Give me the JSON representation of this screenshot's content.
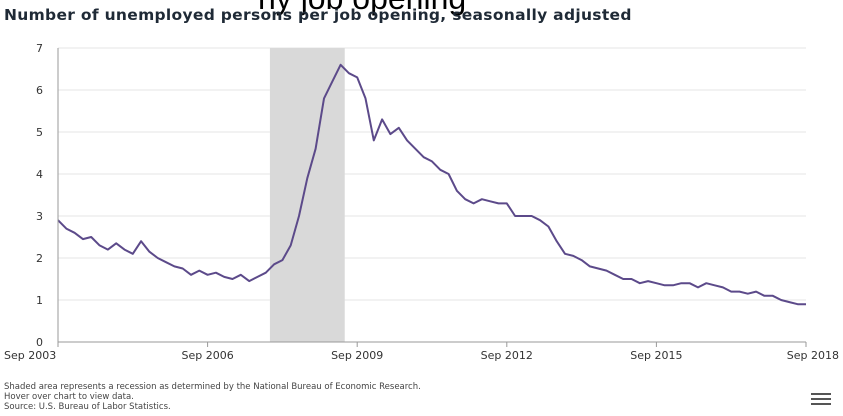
{
  "page": {
    "top_cut_text": "ny job opening",
    "title": "Number of unemployed persons per job opening, seasonally adjusted",
    "notes": [
      "Shaded area represents a recession as determined by the National Bureau of Economic Research.",
      "Hover over chart to view data.",
      "Source: U.S. Bureau of Labor Statistics."
    ],
    "menu_icon": "hamburger-menu-icon"
  },
  "colors": {
    "line": "#5c4a8a",
    "recession": "#d9d9d9",
    "grid": "#e6e6e6",
    "axis": "#999999"
  },
  "chart_data": {
    "type": "line",
    "title": "Number of unemployed persons per job opening, seasonally adjusted",
    "xlabel": "",
    "ylabel": "",
    "x_ticks": [
      "Sep 2003",
      "Sep 2006",
      "Sep 2009",
      "Sep 2012",
      "Sep 2015",
      "Sep 2018"
    ],
    "y_ticks": [
      0,
      1,
      2,
      3,
      4,
      5,
      6,
      7
    ],
    "xlim": [
      "2003-09",
      "2018-09"
    ],
    "ylim": [
      0,
      7
    ],
    "grid": "horizontal",
    "recession": {
      "start": "2007-12",
      "end": "2009-06"
    },
    "series": [
      {
        "x": [
          "2003-09",
          "2003-11",
          "2004-01",
          "2004-03",
          "2004-05",
          "2004-07",
          "2004-09",
          "2004-11",
          "2005-01",
          "2005-03",
          "2005-05",
          "2005-07",
          "2005-09",
          "2005-11",
          "2006-01",
          "2006-03",
          "2006-05",
          "2006-07",
          "2006-09",
          "2006-11",
          "2007-01",
          "2007-03",
          "2007-05",
          "2007-07",
          "2007-09",
          "2007-11",
          "2008-01",
          "2008-03",
          "2008-05",
          "2008-07",
          "2008-09",
          "2008-11",
          "2009-01",
          "2009-03",
          "2009-05",
          "2009-07",
          "2009-09",
          "2009-11",
          "2010-01",
          "2010-03",
          "2010-05",
          "2010-07",
          "2010-09",
          "2010-11",
          "2011-01",
          "2011-03",
          "2011-05",
          "2011-07",
          "2011-09",
          "2011-11",
          "2012-01",
          "2012-03",
          "2012-05",
          "2012-07",
          "2012-09",
          "2012-11",
          "2013-01",
          "2013-03",
          "2013-05",
          "2013-07",
          "2013-09",
          "2013-11",
          "2014-01",
          "2014-03",
          "2014-05",
          "2014-07",
          "2014-09",
          "2014-11",
          "2015-01",
          "2015-03",
          "2015-05",
          "2015-07",
          "2015-09",
          "2015-11",
          "2016-01",
          "2016-03",
          "2016-05",
          "2016-07",
          "2016-09",
          "2016-11",
          "2017-01",
          "2017-03",
          "2017-05",
          "2017-07",
          "2017-09",
          "2017-11",
          "2018-01",
          "2018-03",
          "2018-05",
          "2018-07",
          "2018-09"
        ],
        "values": [
          2.9,
          2.7,
          2.6,
          2.45,
          2.5,
          2.3,
          2.2,
          2.35,
          2.2,
          2.1,
          2.4,
          2.15,
          2.0,
          1.9,
          1.8,
          1.75,
          1.6,
          1.7,
          1.6,
          1.65,
          1.55,
          1.5,
          1.6,
          1.45,
          1.55,
          1.65,
          1.85,
          1.95,
          2.3,
          3.0,
          3.9,
          4.6,
          5.8,
          6.2,
          6.6,
          6.4,
          6.3,
          5.8,
          4.8,
          5.3,
          4.95,
          5.1,
          4.8,
          4.6,
          4.4,
          4.3,
          4.1,
          4.0,
          3.6,
          3.4,
          3.3,
          3.4,
          3.35,
          3.3,
          3.3,
          3.0,
          3.0,
          3.0,
          2.9,
          2.75,
          2.4,
          2.1,
          2.05,
          1.95,
          1.8,
          1.75,
          1.7,
          1.6,
          1.5,
          1.5,
          1.4,
          1.45,
          1.4,
          1.35,
          1.35,
          1.4,
          1.4,
          1.3,
          1.4,
          1.35,
          1.3,
          1.2,
          1.2,
          1.15,
          1.2,
          1.1,
          1.1,
          1.0,
          0.95,
          0.9,
          0.9
        ]
      }
    ]
  }
}
